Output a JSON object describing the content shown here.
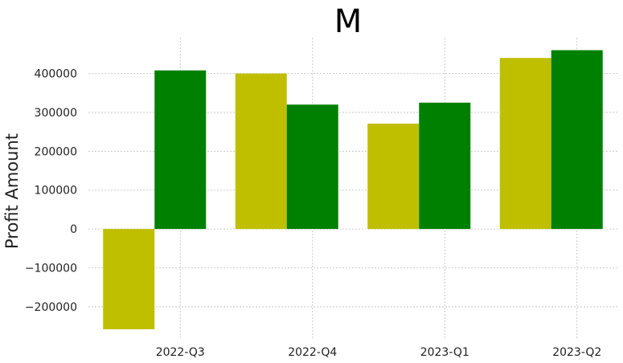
{
  "chart_data": {
    "type": "bar",
    "title": "M",
    "xlabel": "",
    "ylabel": "Profit Amount",
    "categories": [
      "2022-Q3",
      "2022-Q4",
      "2023-Q1",
      "2023-Q2"
    ],
    "series": [
      {
        "color": "#bfbf00",
        "values": [
          -258000,
          400000,
          271000,
          440000
        ]
      },
      {
        "color": "#008000",
        "values": [
          408000,
          320000,
          325000,
          460000
        ]
      }
    ],
    "ylim": [
      -258000,
      492000
    ],
    "yticks": [
      -200000,
      -100000,
      0,
      100000,
      200000,
      300000,
      400000
    ],
    "ytick_labels": [
      "−200000",
      "−100000",
      "0",
      "100000",
      "200000",
      "300000",
      "400000"
    ],
    "grid": true,
    "legend": "none"
  }
}
